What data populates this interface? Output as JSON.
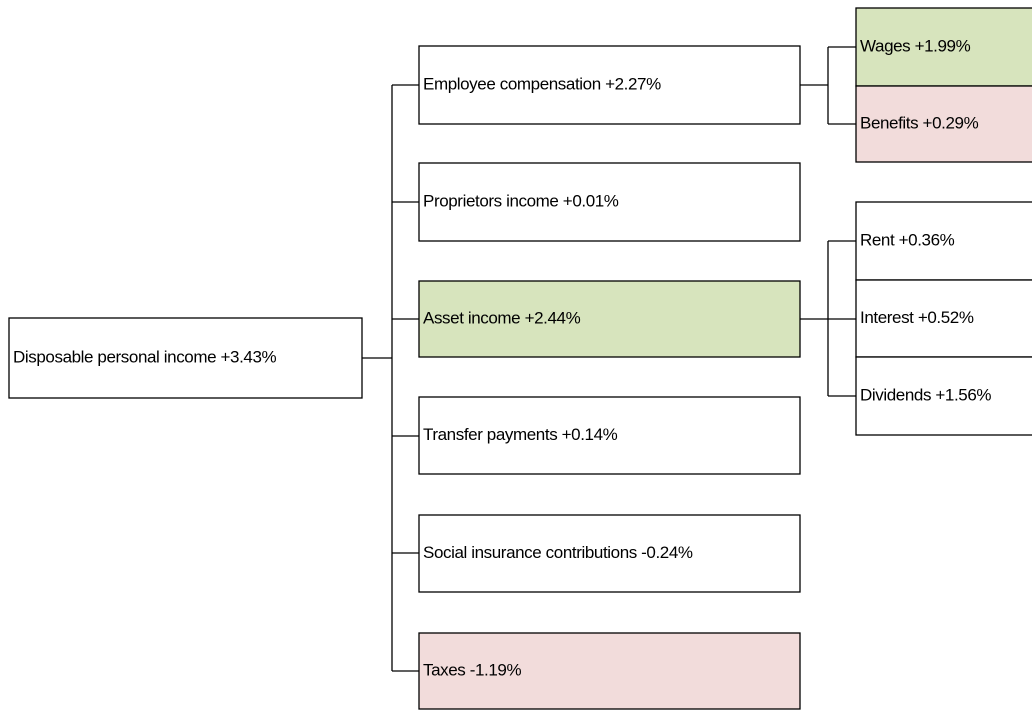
{
  "nodes": [
    {
      "label": "Disposable personal income +3.43%"
    },
    {
      "label": "Employee compensation +2.27%"
    },
    {
      "label": "Proprietors income +0.01%"
    },
    {
      "label": "Asset income +2.44%"
    },
    {
      "label": "Transfer payments +0.14%"
    },
    {
      "label": "Social insurance contributions -0.24%"
    },
    {
      "label": "Taxes -1.19%"
    },
    {
      "label": "Wages +1.99%"
    },
    {
      "label": "Benefits +0.29%"
    },
    {
      "label": "Rent +0.36%"
    },
    {
      "label": "Interest +0.52%"
    },
    {
      "label": "Dividends +1.56%"
    }
  ]
}
